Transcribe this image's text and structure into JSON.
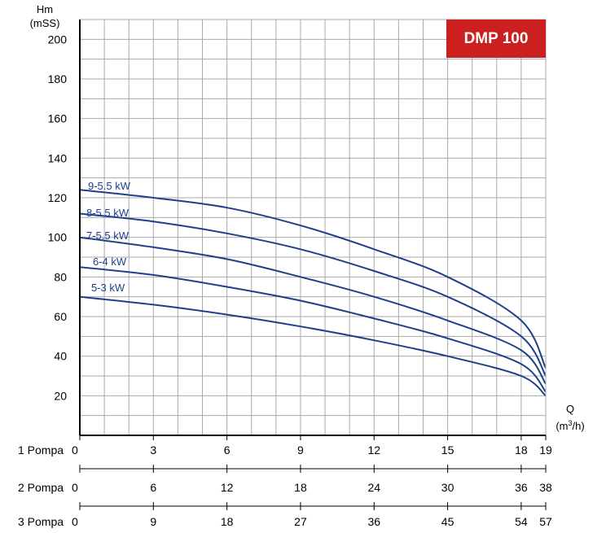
{
  "chart_data": {
    "type": "line",
    "title": "DMP 100",
    "ylabel": "Hm",
    "ylabel_unit": "(mSS)",
    "xlabel": "Q",
    "xlabel_unit_prefix": "(m",
    "xlabel_unit_exp": "3",
    "xlabel_unit_suffix": "/h)",
    "xlim": [
      0,
      19
    ],
    "ylim": [
      0,
      210
    ],
    "y_ticks": [
      20,
      40,
      60,
      80,
      100,
      120,
      140,
      160,
      180,
      200
    ],
    "grid": true,
    "flow_scales": [
      {
        "label": "1 Pompa",
        "start": "0",
        "ticks": [
          "3",
          "6",
          "9",
          "12",
          "15",
          "18",
          "19"
        ]
      },
      {
        "label": "2 Pompa",
        "start": "0",
        "ticks": [
          "6",
          "12",
          "18",
          "24",
          "30",
          "36",
          "38"
        ]
      },
      {
        "label": "3 Pompa",
        "start": "0",
        "ticks": [
          "9",
          "18",
          "27",
          "36",
          "45",
          "54",
          "57"
        ]
      }
    ],
    "series": [
      {
        "name": "9-5.5 kW",
        "x": [
          0,
          3,
          6,
          9,
          12,
          15,
          18,
          19
        ],
        "y": [
          124,
          120,
          115,
          106,
          94,
          80,
          58,
          34
        ]
      },
      {
        "name": "8-5.5 kW",
        "x": [
          0,
          3,
          6,
          9,
          12,
          15,
          18,
          19
        ],
        "y": [
          112,
          108,
          102,
          94,
          83,
          70,
          50,
          30
        ]
      },
      {
        "name": "7-5.5 kW",
        "x": [
          0,
          3,
          6,
          9,
          12,
          15,
          18,
          19
        ],
        "y": [
          100,
          95,
          89,
          80,
          70,
          58,
          43,
          26
        ]
      },
      {
        "name": "6-4 kW",
        "x": [
          0,
          3,
          6,
          9,
          12,
          15,
          18,
          19
        ],
        "y": [
          85,
          81,
          75,
          68,
          59,
          49,
          36,
          22
        ]
      },
      {
        "name": "5-3 kW",
        "x": [
          0,
          3,
          6,
          9,
          12,
          15,
          18,
          19
        ],
        "y": [
          70,
          66,
          61,
          55,
          48,
          40,
          30,
          20
        ]
      }
    ],
    "colors": {
      "curve": "#1f3f8a",
      "badge": "#cc1f1f",
      "grid": "#a9a9a9",
      "axis": "#000000"
    }
  }
}
